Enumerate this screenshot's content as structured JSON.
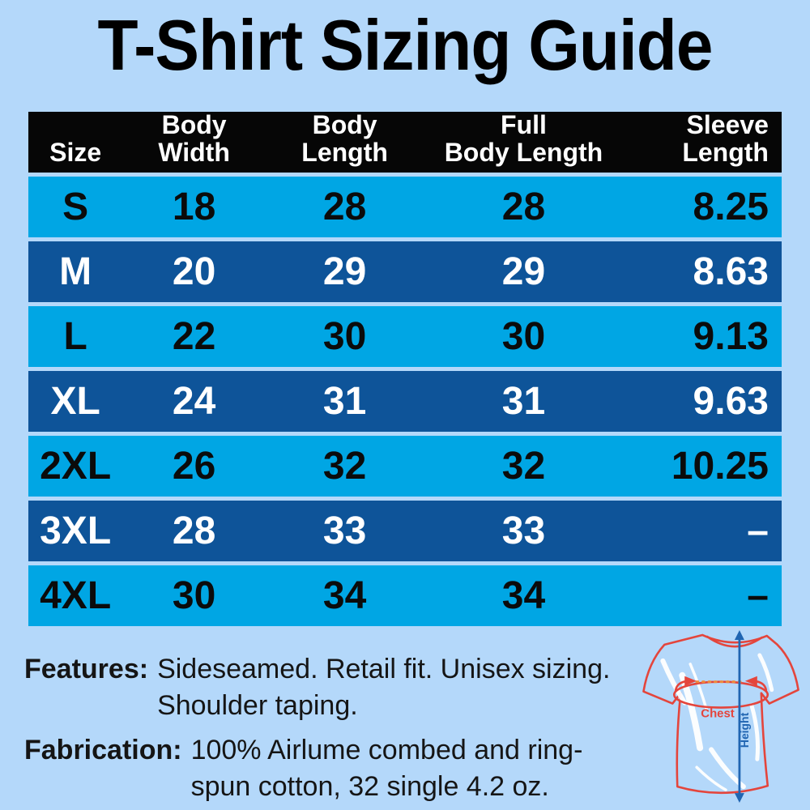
{
  "title": "T-Shirt Sizing Guide",
  "table": {
    "headers": [
      "Size",
      "Body\nWidth",
      "Body\nLength",
      "Full\nBody Length",
      "Sleeve\nLength"
    ],
    "rows": [
      [
        "S",
        "18",
        "28",
        "28",
        "8.25"
      ],
      [
        "M",
        "20",
        "29",
        "29",
        "8.63"
      ],
      [
        "L",
        "22",
        "30",
        "30",
        "9.13"
      ],
      [
        "XL",
        "24",
        "31",
        "31",
        "9.63"
      ],
      [
        "2XL",
        "26",
        "32",
        "32",
        "10.25"
      ],
      [
        "3XL",
        "28",
        "33",
        "33",
        "–"
      ],
      [
        "4XL",
        "30",
        "34",
        "34",
        "–"
      ]
    ]
  },
  "chart_data": {
    "type": "table",
    "title": "T-Shirt Sizing Guide",
    "columns": [
      "Size",
      "Body Width",
      "Body Length",
      "Full Body Length",
      "Sleeve Length"
    ],
    "rows": [
      {
        "size": "S",
        "body_width": 18,
        "body_length": 28,
        "full_body_length": 28,
        "sleeve_length": 8.25
      },
      {
        "size": "M",
        "body_width": 20,
        "body_length": 29,
        "full_body_length": 29,
        "sleeve_length": 8.63
      },
      {
        "size": "L",
        "body_width": 22,
        "body_length": 30,
        "full_body_length": 30,
        "sleeve_length": 9.13
      },
      {
        "size": "XL",
        "body_width": 24,
        "body_length": 31,
        "full_body_length": 31,
        "sleeve_length": 9.63
      },
      {
        "size": "2XL",
        "body_width": 26,
        "body_length": 32,
        "full_body_length": 32,
        "sleeve_length": 10.25
      },
      {
        "size": "3XL",
        "body_width": 28,
        "body_length": 33,
        "full_body_length": 33,
        "sleeve_length": "–"
      },
      {
        "size": "4XL",
        "body_width": 30,
        "body_length": 34,
        "full_body_length": 34,
        "sleeve_length": "–"
      }
    ]
  },
  "notes": {
    "features": {
      "label": "Features:",
      "lines": [
        "Sideseamed. Retail fit. Unisex sizing.",
        "Shoulder taping."
      ]
    },
    "fabrication": {
      "label": "Fabrication:",
      "lines": [
        "100% Airlume combed and ring-",
        "spun cotton, 32 single 4.2 oz."
      ]
    }
  },
  "diagram": {
    "chest_label": "Chest",
    "height_label": "Height"
  },
  "colors": {
    "background": "#B4D8FA",
    "header_bg": "#060606",
    "row_light": "#00A6E4",
    "row_dark": "#0E5499",
    "text_dark": "#0B0B0B",
    "text_light": "#FFFFFF",
    "diagram_red": "#E4453C",
    "diagram_blue": "#2065B2",
    "diagram_dotted_orange": "#EE8B3C"
  }
}
